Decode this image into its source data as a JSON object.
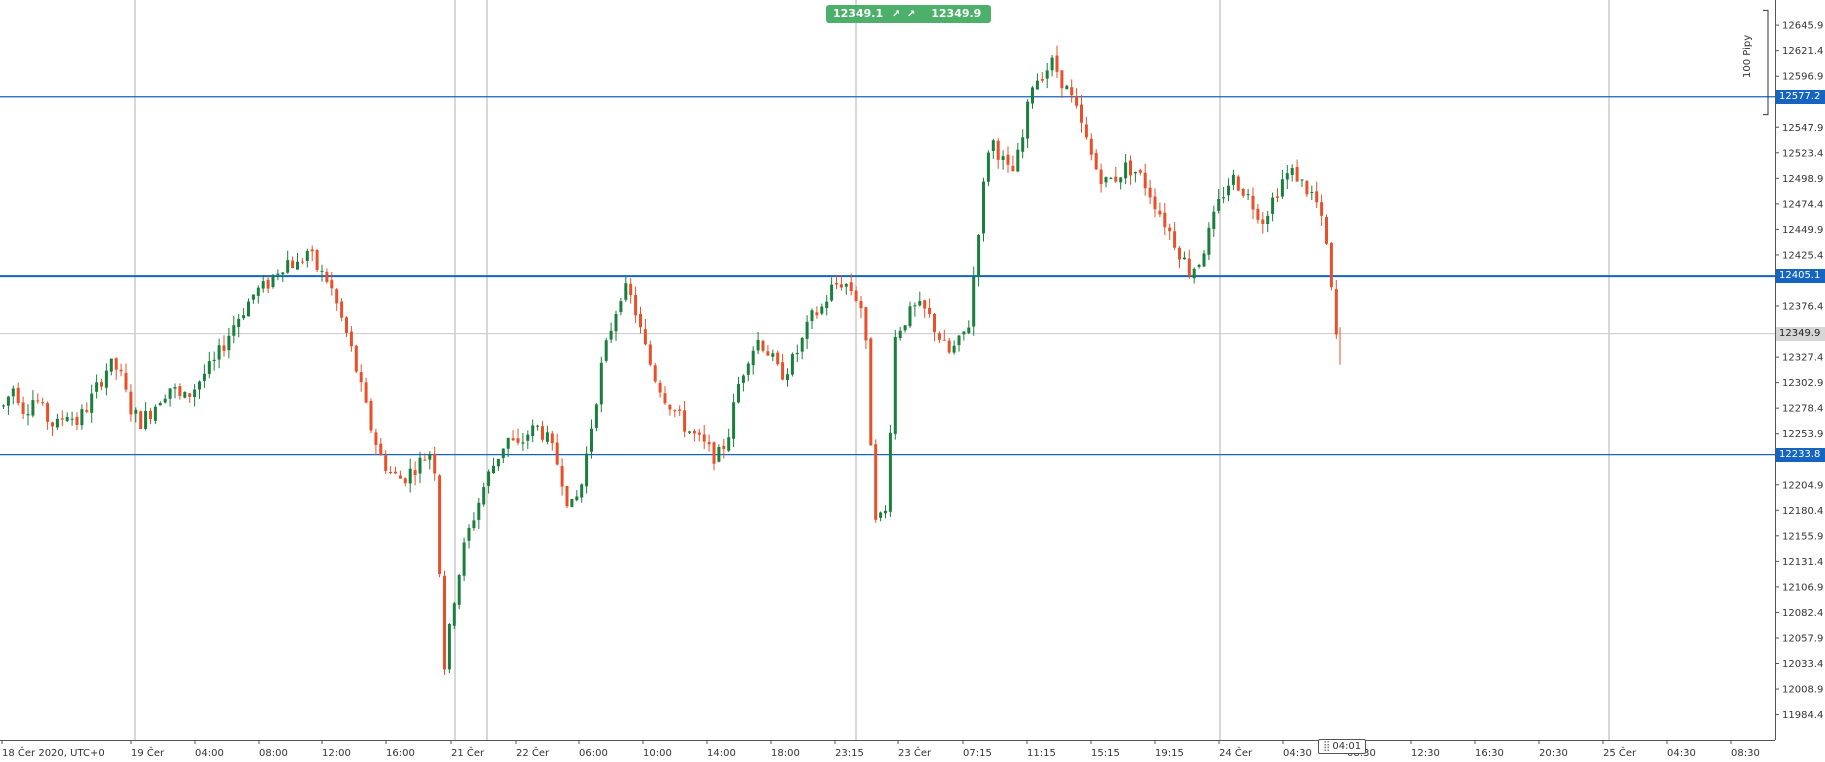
{
  "trade_panel": {
    "sell_price": "12349.1",
    "buy_price": "12349.9",
    "arrow_icon": "↗"
  },
  "pips_ruler": {
    "label": "100 Pipy"
  },
  "time_marker": {
    "label": "04:01",
    "grip_icon": "⣿"
  },
  "colors": {
    "bull": "#1a7f3c",
    "bear": "#e8502a",
    "level_line": "#1565c0",
    "price_line": "#c8c8c8",
    "separator": "#9e9e9e",
    "button": "#4caf6a"
  },
  "chart_data": {
    "type": "candlestick",
    "symbol_timezone_label": "18 Čer 2020, UTC+0",
    "ylim": [
      11960,
      12670
    ],
    "y_tick_labels": [
      "12645.9",
      "12621.4",
      "12596.9",
      "12547.9",
      "12523.4",
      "12498.9",
      "12474.4",
      "12449.9",
      "12425.4",
      "12376.4",
      "12327.4",
      "12302.9",
      "12278.4",
      "12253.9",
      "12204.9",
      "12180.4",
      "12155.9",
      "12131.4",
      "12106.9",
      "12082.4",
      "12057.9",
      "12033.4",
      "12008.9",
      "11984.4"
    ],
    "x_tick_labels": [
      "18 Čer 2020, UTC+0",
      "19 Čer",
      "04:00",
      "08:00",
      "12:00",
      "16:00",
      "21 Čer",
      "22 Čer",
      "06:00",
      "10:00",
      "14:00",
      "18:00",
      "23:15",
      "23 Čer",
      "07:15",
      "11:15",
      "15:15",
      "19:15",
      "24 Čer",
      "04:30",
      "08:30",
      "12:30",
      "16:30",
      "20:30",
      "25 Čer",
      "04:30",
      "08:30"
    ],
    "day_separators": [
      "19 Čer",
      "21 Čer start",
      "22 Čer",
      "23 Čer",
      "24 Čer",
      "25 Čer"
    ],
    "horizontal_levels": [
      {
        "value": 12577.2,
        "label": "12577.2"
      },
      {
        "value": 12405.1,
        "label": "12405.1"
      },
      {
        "value": 12233.8,
        "label": "12233.8"
      }
    ],
    "current_price": {
      "value": 12349.9,
      "label": "12349.9"
    },
    "pips_ruler_range": [
      12660,
      12560
    ],
    "path_anchors": [
      12280,
      12300,
      12275,
      12290,
      12270,
      12260,
      12275,
      12265,
      12280,
      12300,
      12320,
      12315,
      12280,
      12265,
      12275,
      12290,
      12300,
      12285,
      12295,
      12310,
      12320,
      12340,
      12360,
      12375,
      12390,
      12395,
      12410,
      12420,
      12415,
      12430,
      12410,
      12400,
      12370,
      12340,
      12300,
      12260,
      12230,
      12215,
      12210,
      12220,
      12230,
      12240,
      12030,
      12100,
      12150,
      12180,
      12210,
      12230,
      12250,
      12240,
      12255,
      12260,
      12245,
      12220,
      12180,
      12200,
      12260,
      12320,
      12360,
      12395,
      12380,
      12340,
      12310,
      12290,
      12275,
      12260,
      12250,
      12240,
      12230,
      12250,
      12300,
      12330,
      12345,
      12330,
      12310,
      12320,
      12340,
      12365,
      12375,
      12395,
      12400,
      12390,
      12370,
      12180,
      12170,
      12350,
      12365,
      12375,
      12370,
      12350,
      12330,
      12340,
      12360,
      12460,
      12540,
      12520,
      12500,
      12530,
      12590,
      12600,
      12610,
      12590,
      12570,
      12540,
      12510,
      12495,
      12500,
      12510,
      12505,
      12490,
      12470,
      12450,
      12430,
      12410,
      12420,
      12450,
      12480,
      12500,
      12490,
      12475,
      12460,
      12480,
      12500,
      12505,
      12490,
      12480,
      12440,
      12345
    ]
  }
}
